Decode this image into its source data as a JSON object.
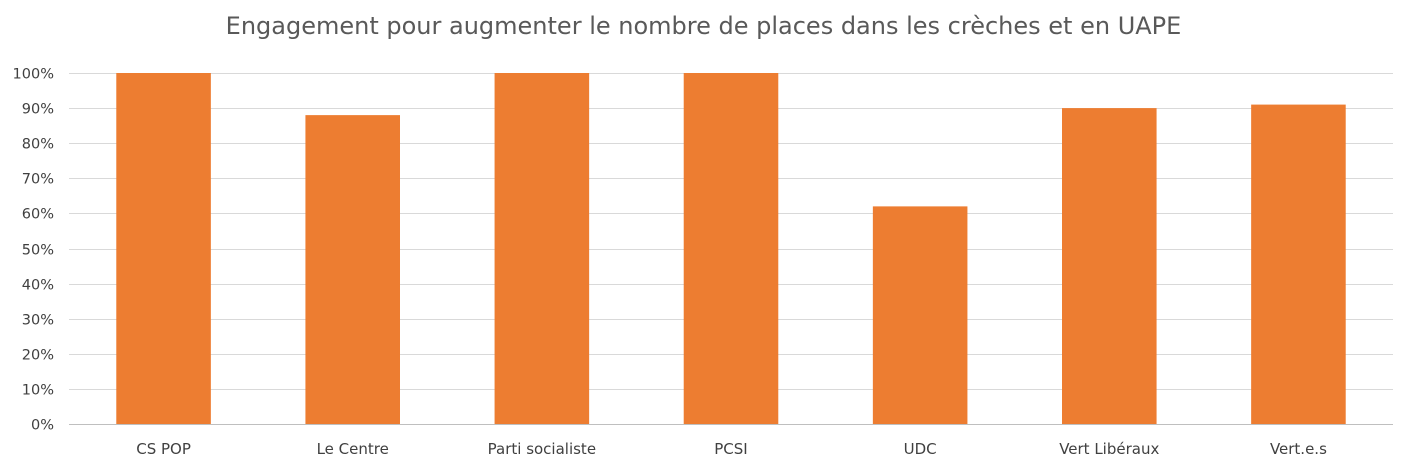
{
  "chart_data": {
    "type": "bar",
    "title": "Engagement pour augmenter le nombre de places dans les crèches et en UAPE",
    "categories": [
      "CS POP",
      "Le Centre",
      "Parti socialiste",
      "PCSI",
      "UDC",
      "Vert Libéraux",
      "Vert.e.s"
    ],
    "values": [
      100,
      88,
      100,
      100,
      62,
      90,
      91
    ],
    "unit": "%",
    "ylim": [
      0,
      100
    ],
    "yticks": [
      0,
      10,
      20,
      30,
      40,
      50,
      60,
      70,
      80,
      90,
      100
    ],
    "ytick_labels": [
      "0%",
      "10%",
      "20%",
      "30%",
      "40%",
      "50%",
      "60%",
      "70%",
      "80%",
      "90%",
      "100%"
    ],
    "xlabel": "",
    "ylabel": "",
    "grid": true,
    "legend": "none",
    "bar_color": "#ED7D31",
    "gridline_color": "#D9D9D9",
    "text_color": "#595959"
  }
}
